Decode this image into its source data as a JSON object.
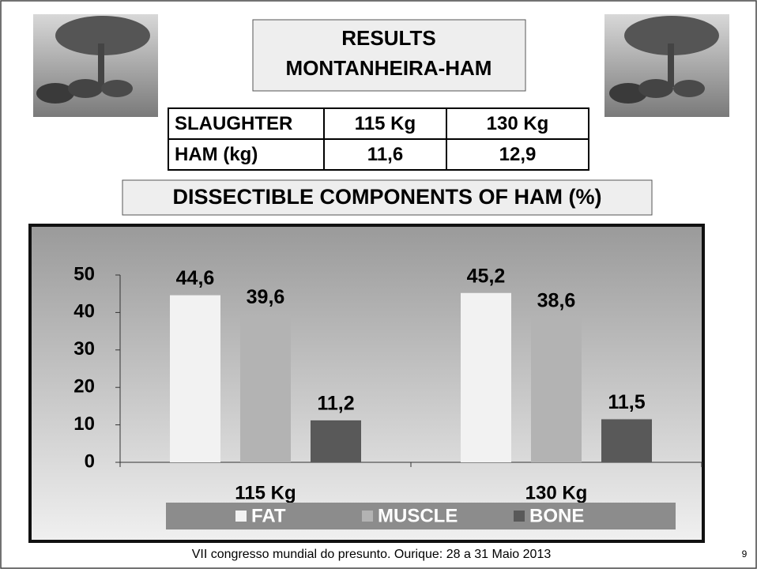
{
  "header": {
    "title": [
      "RESULTS",
      "MONTANHEIRA-HAM"
    ]
  },
  "table": {
    "rows": [
      [
        "SLAUGHTER",
        "115 Kg",
        "130 Kg"
      ],
      [
        "HAM (kg)",
        "11,6",
        "12,9"
      ]
    ]
  },
  "chart_data": {
    "type": "bar",
    "title": "DISSECTIBLE COMPONENTS OF HAM (%)",
    "categories": [
      "115 Kg",
      "130 Kg"
    ],
    "series": [
      {
        "name": "FAT",
        "color": "#f2f2f2",
        "values": [
          44.6,
          45.2
        ],
        "value_labels": [
          "44,6",
          "45,2"
        ]
      },
      {
        "name": "MUSCLE",
        "color": "#b3b3b3",
        "values": [
          39.6,
          38.6
        ],
        "value_labels": [
          "39,6",
          "38,6"
        ]
      },
      {
        "name": "BONE",
        "color": "#595959",
        "values": [
          11.2,
          11.5
        ],
        "value_labels": [
          "11,2",
          "11,5"
        ]
      }
    ],
    "ylim": [
      0,
      50
    ],
    "yticks": [
      0,
      10,
      20,
      30,
      40,
      50
    ],
    "legend": "bottom"
  },
  "footer": {
    "text": "VII congresso mundial do presunto. Ourique: 28 a 31 Maio 2013",
    "page": "9"
  }
}
